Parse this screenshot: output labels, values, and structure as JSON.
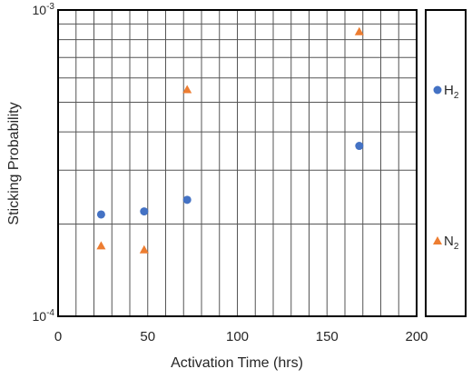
{
  "chart_data": {
    "type": "scatter",
    "title": "",
    "xlabel": "Activation Time (hrs)",
    "ylabel": "Sticking Probability",
    "xlim": [
      0,
      200
    ],
    "ylim": [
      0.0001,
      0.001
    ],
    "yscale": "log",
    "grid": true,
    "x_ticks": [
      0,
      50,
      100,
      150,
      200
    ],
    "x_tick_labels": [
      "0",
      "50",
      "100",
      "150",
      "200"
    ],
    "y_tick_labels": [
      {
        "base": "10",
        "exp": "-3",
        "value": 0.001
      },
      {
        "base": "10",
        "exp": "-4",
        "value": 0.0001
      }
    ],
    "legend_position": "right",
    "series": [
      {
        "name_main": "H",
        "name_sub": "2",
        "marker": "circle",
        "color": "#4472c4",
        "points": [
          {
            "x": 24,
            "y": 0.000215
          },
          {
            "x": 48,
            "y": 0.00022
          },
          {
            "x": 72,
            "y": 0.00024
          },
          {
            "x": 168,
            "y": 0.00036
          }
        ]
      },
      {
        "name_main": "N",
        "name_sub": "2",
        "marker": "triangle",
        "color": "#ed7d31",
        "points": [
          {
            "x": 24,
            "y": 0.00017
          },
          {
            "x": 48,
            "y": 0.000165
          },
          {
            "x": 72,
            "y": 0.00055
          },
          {
            "x": 168,
            "y": 0.00085
          }
        ]
      }
    ]
  }
}
